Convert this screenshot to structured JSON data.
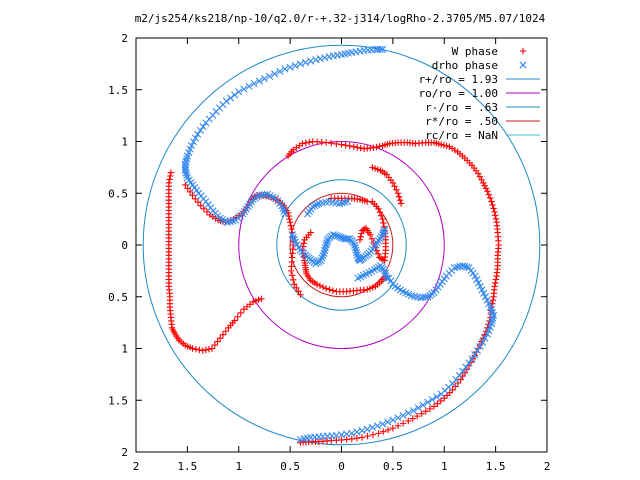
{
  "chart_data": {
    "type": "scatter",
    "title": "m2/js254/ks218/np-10/q2.0/r-+.32-j314/logRho-2.3705/M5.07/1024",
    "xlabel": "",
    "ylabel": "",
    "xlim": [
      -2,
      2
    ],
    "ylim": [
      -2,
      2
    ],
    "x_tick_labels": [
      "2",
      "1.5",
      "1",
      "0.5",
      "0",
      "0.5",
      "1",
      "1.5",
      "2"
    ],
    "y_tick_labels": [
      "2",
      "1.5",
      "1",
      "0.5",
      "0",
      "0.5",
      "1",
      "1.5",
      "2"
    ],
    "grid": false,
    "legend_position": "top-right",
    "colors": {
      "w_phase": "#ff0000",
      "drho_phase": "#3388ee",
      "r_plus": "#1f8ac8",
      "ro": "#b400c8",
      "r_minus": "#1f8ac8",
      "r_star": "#c81e1e",
      "rc": "#40c0d0"
    },
    "series": [
      {
        "name": "W phase",
        "marker": "+",
        "color": "#ff0000",
        "arms": [
          [
            [
              -0.78,
              -0.52
            ],
            [
              -0.86,
              -0.55
            ],
            [
              -0.95,
              -0.62
            ],
            [
              -1.04,
              -0.73
            ],
            [
              -1.1,
              -0.8
            ],
            [
              -1.18,
              -0.9
            ],
            [
              -1.26,
              -1.0
            ],
            [
              -1.35,
              -1.02
            ],
            [
              -1.45,
              -1.0
            ],
            [
              -1.52,
              -0.97
            ],
            [
              -1.58,
              -0.92
            ],
            [
              -1.62,
              -0.86
            ],
            [
              -1.65,
              -0.8
            ],
            [
              -1.66,
              -0.7
            ],
            [
              -1.67,
              -0.6
            ],
            [
              -1.67,
              -0.5
            ],
            [
              -1.68,
              -0.4
            ],
            [
              -1.68,
              -0.3
            ],
            [
              -1.68,
              -0.2
            ],
            [
              -1.68,
              -0.1
            ],
            [
              -1.68,
              0.0
            ],
            [
              -1.68,
              0.1
            ],
            [
              -1.68,
              0.2
            ],
            [
              -1.68,
              0.3
            ],
            [
              -1.68,
              0.4
            ],
            [
              -1.68,
              0.5
            ],
            [
              -1.68,
              0.6
            ],
            [
              -1.66,
              0.7
            ]
          ],
          [
            [
              -0.52,
              0.86
            ],
            [
              -0.47,
              0.92
            ],
            [
              -0.38,
              0.98
            ],
            [
              -0.28,
              1.0
            ],
            [
              -0.15,
              0.99
            ],
            [
              0.0,
              0.97
            ],
            [
              0.12,
              0.95
            ],
            [
              0.22,
              0.93
            ],
            [
              0.31,
              0.94
            ],
            [
              0.4,
              0.96
            ],
            [
              0.47,
              0.98
            ],
            [
              0.55,
              0.99
            ],
            [
              0.64,
              0.99
            ],
            [
              0.72,
              0.98
            ],
            [
              0.82,
              0.99
            ],
            [
              0.9,
              0.99
            ],
            [
              0.97,
              0.97
            ],
            [
              1.05,
              0.95
            ],
            [
              1.13,
              0.9
            ],
            [
              1.2,
              0.84
            ],
            [
              1.27,
              0.77
            ],
            [
              1.33,
              0.69
            ],
            [
              1.38,
              0.6
            ],
            [
              1.42,
              0.52
            ],
            [
              1.46,
              0.42
            ],
            [
              1.49,
              0.32
            ],
            [
              1.51,
              0.22
            ],
            [
              1.52,
              0.12
            ],
            [
              1.53,
              0.0
            ],
            [
              1.52,
              -0.1
            ],
            [
              1.52,
              -0.2
            ],
            [
              1.51,
              -0.3
            ],
            [
              1.49,
              -0.4
            ],
            [
              1.48,
              -0.5
            ],
            [
              1.46,
              -0.6
            ],
            [
              1.45,
              -0.7
            ],
            [
              1.42,
              -0.8
            ],
            [
              1.38,
              -0.9
            ],
            [
              1.33,
              -1.0
            ],
            [
              1.28,
              -1.1
            ],
            [
              1.22,
              -1.2
            ],
            [
              1.16,
              -1.3
            ],
            [
              1.08,
              -1.4
            ],
            [
              1.0,
              -1.48
            ],
            [
              0.9,
              -1.56
            ],
            [
              0.78,
              -1.63
            ],
            [
              0.65,
              -1.7
            ],
            [
              0.5,
              -1.77
            ],
            [
              0.36,
              -1.82
            ],
            [
              0.2,
              -1.86
            ],
            [
              0.05,
              -1.88
            ],
            [
              -0.1,
              -1.89
            ],
            [
              -0.22,
              -1.9
            ],
            [
              -0.32,
              -1.9
            ],
            [
              -0.4,
              -1.91
            ]
          ],
          [
            [
              -1.52,
              0.58
            ],
            [
              -1.45,
              0.48
            ],
            [
              -1.37,
              0.38
            ],
            [
              -1.28,
              0.29
            ],
            [
              -1.2,
              0.24
            ],
            [
              -1.13,
              0.22
            ],
            [
              -1.05,
              0.25
            ],
            [
              -0.97,
              0.3
            ],
            [
              -0.92,
              0.36
            ],
            [
              -0.87,
              0.44
            ],
            [
              -0.82,
              0.48
            ],
            [
              -0.76,
              0.48
            ],
            [
              -0.68,
              0.46
            ],
            [
              -0.62,
              0.43
            ],
            [
              -0.56,
              0.38
            ],
            [
              -0.52,
              0.31
            ],
            [
              -0.5,
              0.22
            ],
            [
              -0.48,
              0.12
            ],
            [
              -0.47,
              0.0
            ],
            [
              -0.48,
              -0.12
            ],
            [
              -0.49,
              -0.25
            ],
            [
              -0.46,
              -0.38
            ],
            [
              -0.4,
              -0.48
            ]
          ],
          [
            [
              -0.3,
              0.12
            ],
            [
              -0.36,
              0.05
            ],
            [
              -0.38,
              -0.05
            ],
            [
              -0.36,
              -0.15
            ],
            [
              -0.35,
              -0.22
            ],
            [
              -0.34,
              -0.28
            ],
            [
              -0.3,
              -0.34
            ],
            [
              -0.24,
              -0.38
            ],
            [
              -0.15,
              -0.42
            ],
            [
              -0.05,
              -0.45
            ],
            [
              0.05,
              -0.45
            ],
            [
              0.15,
              -0.44
            ],
            [
              0.25,
              -0.43
            ],
            [
              0.33,
              -0.4
            ],
            [
              0.39,
              -0.35
            ],
            [
              0.44,
              -0.3
            ]
          ],
          [
            [
              0.3,
              0.42
            ],
            [
              0.36,
              0.35
            ],
            [
              0.4,
              0.25
            ],
            [
              0.42,
              0.14
            ],
            [
              0.43,
              0.05
            ],
            [
              0.43,
              -0.05
            ],
            [
              0.42,
              -0.15
            ],
            [
              0.37,
              -0.12
            ],
            [
              0.33,
              -0.02
            ],
            [
              0.28,
              0.1
            ],
            [
              0.24,
              0.16
            ],
            [
              0.2,
              0.14
            ],
            [
              0.18,
              0.05
            ]
          ],
          [
            [
              -0.1,
              0.45
            ],
            [
              0.0,
              0.45
            ],
            [
              0.1,
              0.45
            ],
            [
              0.18,
              0.44
            ],
            [
              0.25,
              0.42
            ]
          ],
          [
            [
              0.3,
              0.75
            ],
            [
              0.38,
              0.72
            ],
            [
              0.44,
              0.68
            ],
            [
              0.5,
              0.6
            ],
            [
              0.55,
              0.5
            ],
            [
              0.58,
              0.4
            ]
          ]
        ]
      },
      {
        "name": "drho phase",
        "marker": "x",
        "color": "#3388ee",
        "arms": [
          [
            [
              0.4,
              1.89
            ],
            [
              0.33,
              1.89
            ],
            [
              0.22,
              1.88
            ],
            [
              0.1,
              1.86
            ],
            [
              0.0,
              1.84
            ],
            [
              -0.12,
              1.82
            ],
            [
              -0.25,
              1.79
            ],
            [
              -0.4,
              1.75
            ],
            [
              -0.55,
              1.7
            ],
            [
              -0.7,
              1.63
            ],
            [
              -0.85,
              1.56
            ],
            [
              -1.0,
              1.48
            ],
            [
              -1.12,
              1.39
            ],
            [
              -1.22,
              1.29
            ],
            [
              -1.32,
              1.18
            ],
            [
              -1.4,
              1.07
            ],
            [
              -1.46,
              0.96
            ],
            [
              -1.5,
              0.86
            ],
            [
              -1.52,
              0.78
            ],
            [
              -1.52,
              0.72
            ],
            [
              -1.5,
              0.65
            ],
            [
              -1.45,
              0.58
            ],
            [
              -1.39,
              0.5
            ],
            [
              -1.32,
              0.42
            ],
            [
              -1.25,
              0.33
            ],
            [
              -1.18,
              0.26
            ],
            [
              -1.11,
              0.22
            ],
            [
              -1.03,
              0.24
            ],
            [
              -0.96,
              0.3
            ],
            [
              -0.91,
              0.37
            ],
            [
              -0.86,
              0.44
            ],
            [
              -0.8,
              0.48
            ],
            [
              -0.72,
              0.49
            ],
            [
              -0.64,
              0.45
            ],
            [
              -0.58,
              0.38
            ],
            [
              -0.55,
              0.3
            ]
          ],
          [
            [
              -0.4,
              -1.88
            ],
            [
              -0.3,
              -1.86
            ],
            [
              -0.18,
              -1.85
            ],
            [
              -0.05,
              -1.84
            ],
            [
              0.1,
              -1.82
            ],
            [
              0.25,
              -1.78
            ],
            [
              0.4,
              -1.73
            ],
            [
              0.55,
              -1.67
            ],
            [
              0.7,
              -1.6
            ],
            [
              0.84,
              -1.52
            ],
            [
              0.97,
              -1.44
            ],
            [
              1.08,
              -1.34
            ],
            [
              1.18,
              -1.22
            ],
            [
              1.27,
              -1.1
            ],
            [
              1.35,
              -0.98
            ],
            [
              1.42,
              -0.86
            ],
            [
              1.46,
              -0.76
            ],
            [
              1.48,
              -0.68
            ],
            [
              1.45,
              -0.6
            ],
            [
              1.4,
              -0.5
            ],
            [
              1.35,
              -0.4
            ],
            [
              1.3,
              -0.3
            ],
            [
              1.24,
              -0.22
            ],
            [
              1.18,
              -0.2
            ],
            [
              1.1,
              -0.22
            ],
            [
              1.02,
              -0.3
            ],
            [
              0.96,
              -0.38
            ],
            [
              0.9,
              -0.46
            ],
            [
              0.84,
              -0.5
            ],
            [
              0.77,
              -0.51
            ],
            [
              0.68,
              -0.49
            ],
            [
              0.6,
              -0.45
            ],
            [
              0.52,
              -0.4
            ],
            [
              0.46,
              -0.32
            ]
          ],
          [
            [
              -0.48,
              0.1
            ],
            [
              -0.45,
              0.03
            ],
            [
              -0.4,
              -0.05
            ],
            [
              -0.35,
              -0.1
            ],
            [
              -0.3,
              -0.14
            ],
            [
              -0.25,
              -0.18
            ],
            [
              -0.2,
              -0.15
            ],
            [
              -0.17,
              -0.08
            ],
            [
              -0.15,
              0.0
            ],
            [
              -0.13,
              0.06
            ],
            [
              -0.08,
              0.1
            ],
            [
              -0.02,
              0.08
            ],
            [
              0.03,
              0.06
            ],
            [
              0.08,
              0.06
            ],
            [
              0.12,
              0.02
            ],
            [
              0.14,
              -0.05
            ],
            [
              0.16,
              -0.12
            ],
            [
              0.18,
              -0.15
            ],
            [
              0.22,
              -0.12
            ],
            [
              0.27,
              -0.08
            ],
            [
              0.32,
              -0.02
            ],
            [
              0.36,
              0.04
            ],
            [
              0.4,
              0.1
            ],
            [
              0.42,
              0.15
            ]
          ],
          [
            [
              -0.33,
              0.3
            ],
            [
              -0.28,
              0.37
            ],
            [
              -0.22,
              0.4
            ],
            [
              -0.12,
              0.42
            ],
            [
              -0.02,
              0.4
            ],
            [
              0.06,
              0.42
            ]
          ],
          [
            [
              0.16,
              -0.32
            ],
            [
              0.24,
              -0.28
            ],
            [
              0.32,
              -0.24
            ],
            [
              0.38,
              -0.2
            ],
            [
              0.42,
              -0.25
            ],
            [
              0.44,
              -0.32
            ]
          ]
        ]
      },
      {
        "name": "r+/ro = 1.93",
        "type": "circle",
        "radius": 1.93,
        "color": "#1f8ac8"
      },
      {
        "name": "ro/ro = 1.00",
        "type": "circle",
        "radius": 1.0,
        "color": "#b400c8"
      },
      {
        "name": "r-/ro = .63",
        "type": "circle",
        "radius": 0.63,
        "color": "#1f8ac8"
      },
      {
        "name": "r*/ro = .50",
        "type": "circle",
        "radius": 0.5,
        "color": "#c81e1e"
      },
      {
        "name": "rc/ro = NaN",
        "type": "circle",
        "radius": null,
        "color": "#40c0d0"
      }
    ]
  }
}
